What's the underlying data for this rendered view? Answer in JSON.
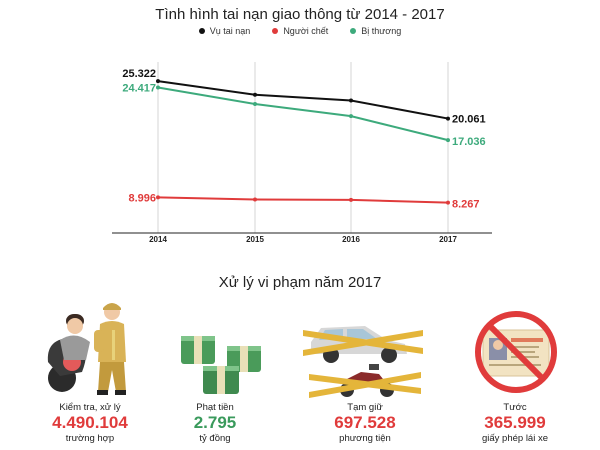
{
  "colors": {
    "accidents": "#111111",
    "deaths": "#e03b3b",
    "injured": "#3daa7c",
    "value_red": "#e03b3b",
    "value_green": "#3a9a5c"
  },
  "chart_data": {
    "type": "line",
    "title": "Tình hình tai nạn giao thông từ 2014 - 2017",
    "x": [
      "2014",
      "2015",
      "2016",
      "2017"
    ],
    "series": [
      {
        "name": "Vụ tai nạn",
        "values": [
          25322,
          23400,
          22600,
          20061
        ]
      },
      {
        "name": "Người chết",
        "values": [
          8996,
          8700,
          8650,
          8267
        ]
      },
      {
        "name": "Bị thương",
        "values": [
          24417,
          22100,
          20400,
          17036
        ]
      }
    ],
    "labels": [
      {
        "series": 0,
        "point": 0,
        "text": "25.322"
      },
      {
        "series": 0,
        "point": 3,
        "text": "20.061"
      },
      {
        "series": 2,
        "point": 0,
        "text": "24.417"
      },
      {
        "series": 2,
        "point": 3,
        "text": "17.036"
      },
      {
        "series": 1,
        "point": 0,
        "text": "8.996"
      },
      {
        "series": 1,
        "point": 3,
        "text": "8.267"
      }
    ],
    "ylim": [
      4000,
      28000
    ],
    "grid": true,
    "legend": "top-center"
  },
  "section2": {
    "title": "Xử lý vi phạm năm 2017",
    "stats": [
      {
        "label": "Kiểm tra, xử lý",
        "value": "4.490.104",
        "unit": "trường hợp",
        "icon": "police-check-icon",
        "color": "red"
      },
      {
        "label": "Phạt tiền",
        "value": "2.795",
        "unit": "tỷ đồng",
        "icon": "money-stack-icon",
        "color": "green"
      },
      {
        "label": "Tạm giữ",
        "value": "697.528",
        "unit": "phương tiện",
        "icon": "impounded-vehicles-icon",
        "color": "red"
      },
      {
        "label": "Tước",
        "value": "365.999",
        "unit": "giấy phép lái xe",
        "icon": "revoked-license-icon",
        "color": "red"
      }
    ]
  }
}
